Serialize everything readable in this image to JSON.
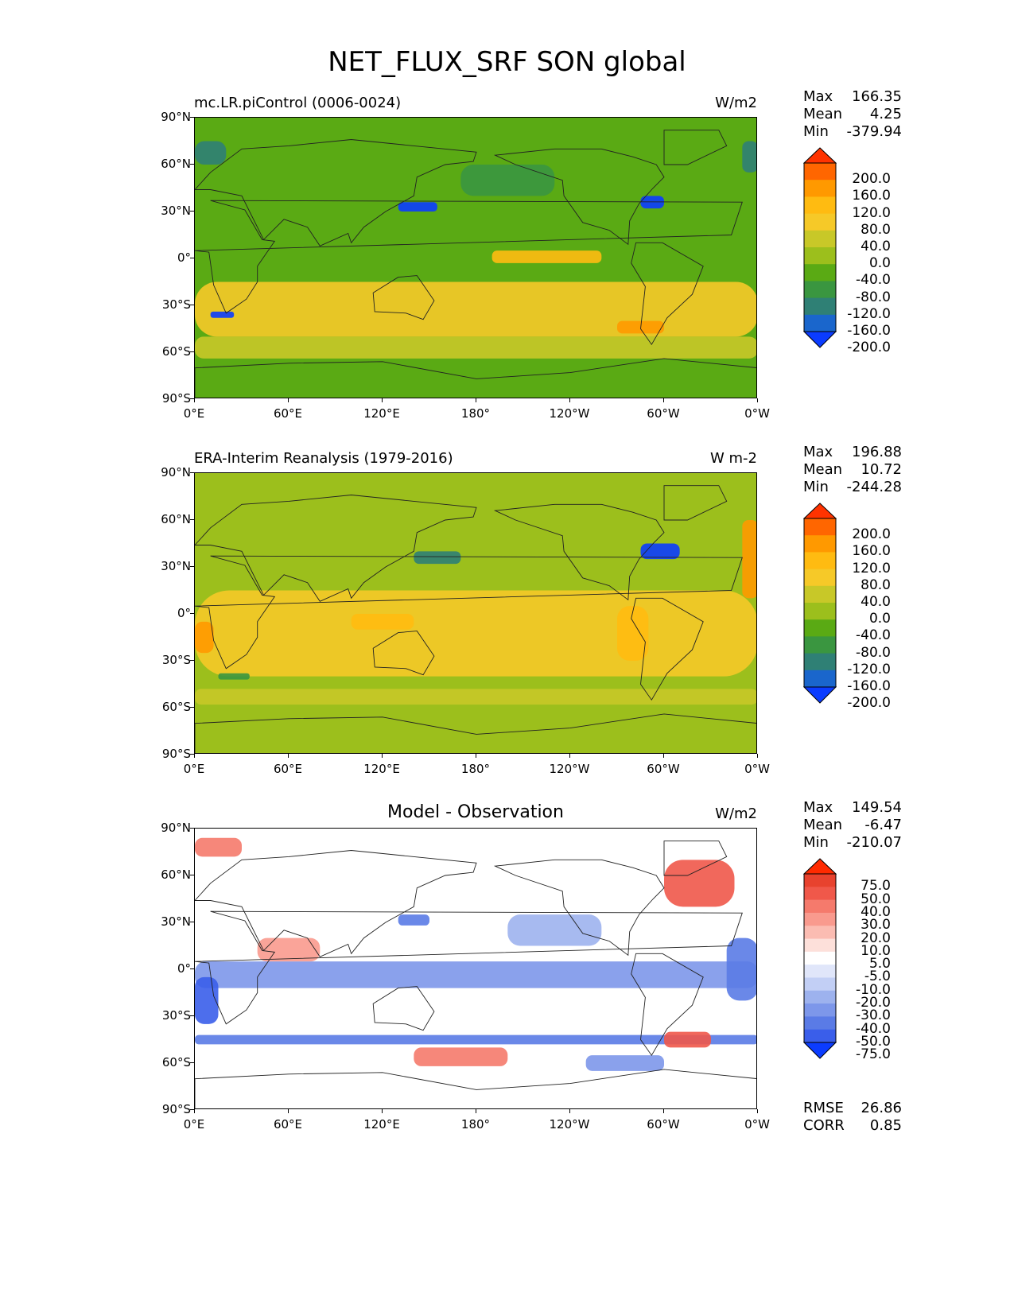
{
  "figure": {
    "title": "NET_FLUX_SRF SON global"
  },
  "chart_data": [
    {
      "type": "heatmap",
      "panel": "model",
      "title": "mc.LR.piControl (0006-0024)",
      "units": "W/m2",
      "stats": {
        "max_label": "Max",
        "max": "166.35",
        "mean_label": "Mean",
        "mean": "4.25",
        "min_label": "Min",
        "min": "-379.94"
      },
      "yticks": [
        "90°N",
        "60°N",
        "30°N",
        "0°",
        "30°S",
        "60°S",
        "90°S"
      ],
      "xticks": [
        "0°E",
        "60°E",
        "120°E",
        "180°",
        "120°W",
        "60°W",
        "0°W"
      ],
      "colorbar": {
        "levels": [
          "200.0",
          "160.0",
          "120.0",
          "80.0",
          "40.0",
          "0.0",
          "-40.0",
          "-80.0",
          "-120.0",
          "-160.0",
          "-200.0"
        ],
        "colors": [
          "#ff3300",
          "#ff6600",
          "#ff9900",
          "#ffbb11",
          "#f6c928",
          "#c8c828",
          "#9cbf1c",
          "#5aaa14",
          "#3a9640",
          "#2f8075",
          "#1a66cc",
          "#0b3cff"
        ]
      },
      "ylim": [
        -90,
        90
      ],
      "xlim": [
        0,
        360
      ]
    },
    {
      "type": "heatmap",
      "panel": "observation",
      "title": "ERA-Interim Reanalysis (1979-2016)",
      "units": "W m-2",
      "stats": {
        "max_label": "Max",
        "max": "196.88",
        "mean_label": "Mean",
        "mean": "10.72",
        "min_label": "Min",
        "min": "-244.28"
      },
      "yticks": [
        "90°N",
        "60°N",
        "30°N",
        "0°",
        "30°S",
        "60°S",
        "90°S"
      ],
      "xticks": [
        "0°E",
        "60°E",
        "120°E",
        "180°",
        "120°W",
        "60°W",
        "0°W"
      ],
      "colorbar": {
        "levels": [
          "200.0",
          "160.0",
          "120.0",
          "80.0",
          "40.0",
          "0.0",
          "-40.0",
          "-80.0",
          "-120.0",
          "-160.0",
          "-200.0"
        ],
        "colors": [
          "#ff3300",
          "#ff6600",
          "#ff9900",
          "#ffbb11",
          "#f6c928",
          "#c8c828",
          "#9cbf1c",
          "#5aaa14",
          "#3a9640",
          "#2f8075",
          "#1a66cc",
          "#0b3cff"
        ]
      },
      "ylim": [
        -90,
        90
      ],
      "xlim": [
        0,
        360
      ]
    },
    {
      "type": "heatmap",
      "panel": "difference",
      "title": "Model - Observation",
      "units": "W/m2",
      "stats": {
        "max_label": "Max",
        "max": "149.54",
        "mean_label": "Mean",
        "mean": "-6.47",
        "min_label": "Min",
        "min": "-210.07",
        "rmse_label": "RMSE",
        "rmse": "26.86",
        "corr_label": "CORR",
        "corr": "0.85"
      },
      "yticks": [
        "90°N",
        "60°N",
        "30°N",
        "0°",
        "30°S",
        "60°S",
        "90°S"
      ],
      "xticks": [
        "0°E",
        "60°E",
        "120°E",
        "180°",
        "120°W",
        "60°W",
        "0°W"
      ],
      "colorbar": {
        "levels": [
          "75.0",
          "50.0",
          "40.0",
          "30.0",
          "20.0",
          "10.0",
          "5.0",
          "-5.0",
          "-10.0",
          "-20.0",
          "-30.0",
          "-40.0",
          "-50.0",
          "-75.0"
        ],
        "colors": [
          "#ff2a00",
          "#e8422e",
          "#f0584a",
          "#f57a6c",
          "#f99a8e",
          "#fbbcb2",
          "#fde0da",
          "#ffffff",
          "#e0e6fa",
          "#c2cff5",
          "#9db2ee",
          "#7d97ea",
          "#5a7be6",
          "#3a5eea",
          "#0b3cff"
        ]
      },
      "ylim": [
        -90,
        90
      ],
      "xlim": [
        0,
        360
      ]
    }
  ]
}
